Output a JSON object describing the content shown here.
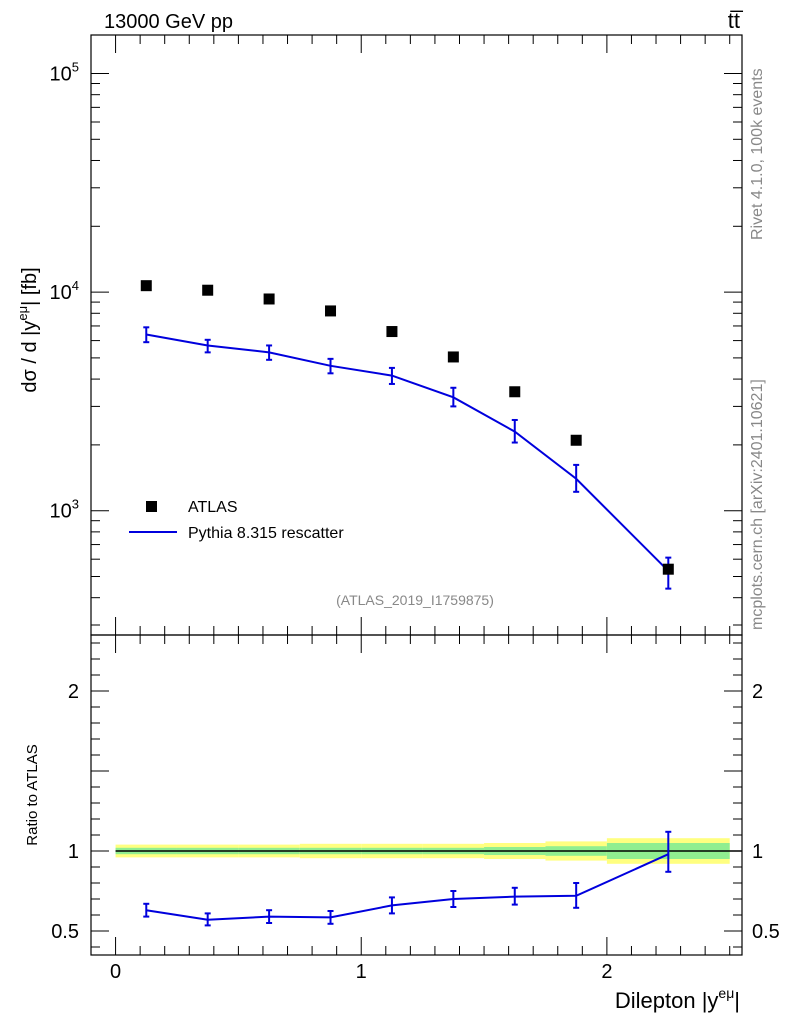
{
  "header": {
    "energy_label": "13000 GeV pp",
    "process_label": "tt̅",
    "side_label_rivet": "Rivet 4.1.0,  100k events",
    "side_label_site": "mcplots.cern.ch [arXiv:2401.10621]",
    "analysis_id": "(ATLAS_2019_I1759875)"
  },
  "colors": {
    "data_marker": "#000000",
    "mc_line": "#0000dd",
    "band_inner": "#90ee90",
    "band_outer": "#ffff80"
  },
  "chart_data": [
    {
      "type": "scatter",
      "panel": "main",
      "ylabel_prefix": "dσ / d |y",
      "ylabel_sup": "eμ",
      "ylabel_suffix": "| [fb]",
      "yscale": "log",
      "ylim": [
        270,
        150000
      ],
      "xlim": [
        -0.1,
        2.55
      ],
      "ytick_labels": [
        {
          "base": "10",
          "exp": "3",
          "value": 1000
        },
        {
          "base": "10",
          "exp": "4",
          "value": 10000
        },
        {
          "base": "10",
          "exp": "5",
          "value": 100000
        }
      ],
      "legend": [
        {
          "name": "ATLAS",
          "style": "marker"
        },
        {
          "name": "Pythia 8.315 rescatter",
          "style": "line"
        }
      ],
      "series": [
        {
          "name": "ATLAS",
          "x": [
            0.125,
            0.375,
            0.625,
            0.875,
            1.125,
            1.375,
            1.625,
            1.875,
            2.25
          ],
          "y": [
            10700,
            10200,
            9300,
            8200,
            6600,
            5050,
            3500,
            2100,
            540
          ]
        },
        {
          "name": "Pythia 8.315 rescatter",
          "x": [
            0.125,
            0.375,
            0.625,
            0.875,
            1.125,
            1.375,
            1.625,
            1.875,
            2.25
          ],
          "y": [
            6400,
            5700,
            5300,
            4600,
            4150,
            3300,
            2300,
            1400,
            530
          ],
          "yerr_low": [
            5900,
            5300,
            4900,
            4250,
            3800,
            3000,
            2050,
            1220,
            440
          ],
          "yerr_high": [
            6900,
            6050,
            5700,
            4950,
            4500,
            3650,
            2600,
            1620,
            610
          ]
        }
      ]
    },
    {
      "type": "line",
      "panel": "ratio",
      "xlabel_prefix": "Dilepton |y",
      "xlabel_sup": "eμ",
      "xlabel_suffix": "|",
      "ylabel": "Ratio to ATLAS",
      "ylim": [
        0.35,
        2.35
      ],
      "xlim": [
        -0.1,
        2.55
      ],
      "xtick_labels": [
        "0",
        "1",
        "2"
      ],
      "xtick_values": [
        0,
        1,
        2
      ],
      "ytick_labels": [
        "0.5",
        "1",
        "2"
      ],
      "ytick_values": [
        0.5,
        1,
        2
      ],
      "band_edges": [
        0,
        0.25,
        0.5,
        0.75,
        1.0,
        1.25,
        1.5,
        1.75,
        2.0,
        2.5
      ],
      "band_inner_half": [
        0.02,
        0.02,
        0.02,
        0.02,
        0.02,
        0.02,
        0.025,
        0.03,
        0.05
      ],
      "band_outer_half": [
        0.04,
        0.04,
        0.04,
        0.045,
        0.045,
        0.045,
        0.05,
        0.06,
        0.08
      ],
      "series": [
        {
          "name": "Pythia 8.315 rescatter",
          "x": [
            0.125,
            0.375,
            0.625,
            0.875,
            1.125,
            1.375,
            1.625,
            1.875,
            2.25
          ],
          "y": [
            0.63,
            0.57,
            0.59,
            0.585,
            0.66,
            0.7,
            0.715,
            0.72,
            0.98
          ],
          "yerr_low": [
            0.59,
            0.535,
            0.55,
            0.545,
            0.61,
            0.65,
            0.665,
            0.645,
            0.87
          ],
          "yerr_high": [
            0.67,
            0.61,
            0.63,
            0.625,
            0.71,
            0.75,
            0.77,
            0.8,
            1.12
          ]
        }
      ]
    }
  ]
}
